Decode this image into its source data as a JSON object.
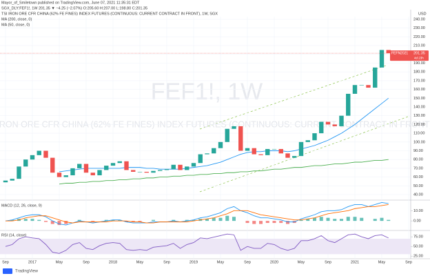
{
  "header": {
    "author": "Mayor_of_Smiletown published on TradingView.com, June 07, 2021 11:35:31 EDT",
    "symbol": "SGX_DLY:FEF1!, 1W  201.35 ▼ −4.25 (−2.07%) O:205.60 H:207.00 L:198.80 C:201.35",
    "description": "TSI IRON ORE CFR CHINA (62% FE FINES) INDEX FUTURES (CONTINUOUS: CURRENT CONTRACT IN FRONT), 1W, SGX"
  },
  "footer": "TradingView",
  "chart_data": [
    {
      "type": "candlestick",
      "title": "FEF1!, 1W",
      "subtitle": "TSI IRON ORE CFR CHINA (62% FE FINES) INDEX FUTURES (CONTINUOUS: CURRENT CONTRACT IN FRONT)",
      "unit": "USD",
      "x": [
        "2016-09",
        "2016-10",
        "2016-11",
        "2016-12",
        "2017-01",
        "2017-02",
        "2017-03",
        "2017-04",
        "2017-05",
        "2017-06",
        "2017-07",
        "2017-08",
        "2017-09",
        "2017-10",
        "2017-11",
        "2017-12",
        "2018-01",
        "2018-02",
        "2018-03",
        "2018-04",
        "2018-05",
        "2018-06",
        "2018-07",
        "2018-08",
        "2018-09",
        "2018-10",
        "2018-11",
        "2018-12",
        "2019-01",
        "2019-02",
        "2019-03",
        "2019-04",
        "2019-05",
        "2019-06",
        "2019-07",
        "2019-08",
        "2019-09",
        "2019-10",
        "2019-11",
        "2019-12",
        "2020-01",
        "2020-02",
        "2020-03",
        "2020-04",
        "2020-05",
        "2020-06",
        "2020-07",
        "2020-08",
        "2020-09",
        "2020-10",
        "2020-11",
        "2020-12",
        "2021-01",
        "2021-02",
        "2021-03",
        "2021-04",
        "2021-05",
        "2021-06"
      ],
      "open": [
        54,
        56,
        58,
        72,
        80,
        85,
        90,
        82,
        65,
        60,
        62,
        70,
        75,
        65,
        62,
        68,
        73,
        76,
        78,
        68,
        66,
        66,
        65,
        67,
        68,
        69,
        74,
        68,
        72,
        76,
        86,
        87,
        93,
        100,
        115,
        118,
        90,
        93,
        86,
        85,
        92,
        92,
        87,
        82,
        84,
        100,
        102,
        110,
        123,
        120,
        118,
        130,
        155,
        165,
        165,
        162,
        185,
        205
      ],
      "close": [
        56,
        58,
        72,
        80,
        85,
        90,
        82,
        65,
        60,
        62,
        70,
        75,
        65,
        62,
        68,
        73,
        76,
        78,
        68,
        66,
        66,
        65,
        67,
        68,
        69,
        74,
        68,
        72,
        76,
        86,
        87,
        93,
        100,
        115,
        118,
        90,
        93,
        86,
        85,
        92,
        92,
        87,
        82,
        84,
        100,
        102,
        110,
        123,
        120,
        118,
        130,
        155,
        165,
        165,
        162,
        185,
        205,
        201.35
      ],
      "up_color": "#26a69a",
      "down_color": "#ef5350",
      "series": [
        {
          "name": "MA (200, close, 0)",
          "color": "#4caf50",
          "values": [
            null,
            null,
            null,
            null,
            null,
            null,
            null,
            null,
            52,
            53,
            53,
            54,
            54,
            55,
            55,
            56,
            56,
            57,
            57,
            58,
            58,
            59,
            59,
            60,
            60,
            61,
            61,
            62,
            62,
            63,
            63,
            64,
            64,
            65,
            65,
            66,
            66,
            67,
            67,
            68,
            69,
            69,
            70,
            71,
            71,
            72,
            73,
            73,
            74,
            75,
            75,
            76,
            77,
            77,
            78,
            79,
            79,
            80
          ]
        },
        {
          "name": "MA (50, close, 0)",
          "color": "#2196f3",
          "values": [
            null,
            null,
            null,
            null,
            null,
            null,
            null,
            null,
            66,
            67,
            68,
            69,
            70,
            70,
            70,
            70,
            70,
            70,
            71,
            71,
            71,
            70,
            70,
            69,
            69,
            69,
            69,
            70,
            71,
            72,
            73,
            75,
            77,
            80,
            83,
            86,
            88,
            89,
            89,
            90,
            90,
            90,
            89,
            90,
            92,
            94,
            96,
            99,
            102,
            106,
            110,
            115,
            120,
            126,
            132,
            138,
            144,
            150
          ]
        }
      ],
      "ylim": [
        40,
        240
      ],
      "yticks": [
        {
          "value": 40,
          "label": "40.00"
        },
        {
          "value": 50,
          "label": "50.00"
        },
        {
          "value": 60,
          "label": "60.00"
        },
        {
          "value": 70,
          "label": "70.00"
        },
        {
          "value": 80,
          "label": "80.00"
        },
        {
          "value": 90,
          "label": "90.00"
        },
        {
          "value": 100,
          "label": "100.00"
        },
        {
          "value": 110,
          "label": "110.00"
        },
        {
          "value": 120,
          "label": "120.00"
        },
        {
          "value": 130,
          "label": "130.00"
        },
        {
          "value": 140,
          "label": "140.00"
        },
        {
          "value": 150,
          "label": "150.00"
        },
        {
          "value": 160,
          "label": "160.00"
        },
        {
          "value": 170,
          "label": "170.00"
        },
        {
          "value": 180,
          "label": "180.00"
        },
        {
          "value": 190,
          "label": "190.00"
        },
        {
          "value": 200,
          "label": "200.00"
        },
        {
          "value": 210,
          "label": "210.00"
        },
        {
          "value": 220,
          "label": "220.00"
        },
        {
          "value": 230,
          "label": "230.00"
        },
        {
          "value": 240,
          "label": "240.00"
        }
      ],
      "xticks": [
        {
          "value": "2016-09",
          "label": "Sep"
        },
        {
          "value": "2017-01",
          "label": "2017"
        },
        {
          "value": "2017-05",
          "label": "May"
        },
        {
          "value": "2017-09",
          "label": "Sep"
        },
        {
          "value": "2018-01",
          "label": "2018"
        },
        {
          "value": "2018-05",
          "label": "May"
        },
        {
          "value": "2018-09",
          "label": "Sep"
        },
        {
          "value": "2019-01",
          "label": "2019"
        },
        {
          "value": "2019-05",
          "label": "May"
        },
        {
          "value": "2019-09",
          "label": "Sep"
        },
        {
          "value": "2020-01",
          "label": "2020"
        },
        {
          "value": "2020-05",
          "label": "May"
        },
        {
          "value": "2020-09",
          "label": "Sep"
        },
        {
          "value": "2021-01",
          "label": "2021"
        },
        {
          "value": "2021-05",
          "label": "May"
        },
        {
          "value": "2021-09",
          "label": "Sep"
        }
      ],
      "grid": true,
      "last_price": {
        "symbol": "FEFN2021",
        "value": 201.35,
        "label": "201.35",
        "countdown": "4d 23h"
      }
    },
    {
      "type": "macd",
      "title": "MACD (12, 26, close, 9)",
      "series": [
        {
          "color": "#2196f3",
          "values": [
            0,
            1,
            3,
            5,
            6,
            6,
            4,
            0,
            -3,
            -4,
            -2,
            0,
            -1,
            -2,
            -1,
            0,
            1,
            1,
            -1,
            -2,
            -2,
            -2,
            -1,
            -1,
            -1,
            0,
            -1,
            0,
            1,
            3,
            4,
            6,
            8,
            12,
            14,
            10,
            8,
            5,
            3,
            3,
            2,
            1,
            -1,
            -1,
            2,
            4,
            6,
            9,
            10,
            10,
            11,
            14,
            16,
            16,
            14,
            16,
            18,
            17
          ]
        },
        {
          "color": "#ff6d00",
          "values": [
            0,
            0,
            1,
            3,
            4,
            5,
            5,
            3,
            1,
            -1,
            -2,
            -1,
            -1,
            -1,
            -1,
            -1,
            0,
            0,
            0,
            -1,
            -1,
            -2,
            -2,
            -1,
            -1,
            -1,
            -1,
            -1,
            0,
            1,
            2,
            3,
            5,
            7,
            10,
            10,
            10,
            8,
            6,
            5,
            4,
            3,
            2,
            1,
            1,
            2,
            3,
            5,
            7,
            8,
            9,
            10,
            12,
            13,
            14,
            14,
            15,
            16
          ]
        }
      ],
      "histogram": {
        "up_color": "#26a69a",
        "down_color": "#ef5350",
        "values": [
          0,
          1,
          2,
          2,
          2,
          1,
          -1,
          -3,
          -4,
          -3,
          0,
          1,
          0,
          -1,
          0,
          1,
          1,
          1,
          -1,
          -1,
          -1,
          0,
          1,
          0,
          0,
          1,
          0,
          1,
          1,
          2,
          2,
          3,
          3,
          5,
          4,
          0,
          -2,
          -3,
          -3,
          -2,
          -2,
          -2,
          -3,
          -2,
          1,
          2,
          3,
          4,
          3,
          2,
          2,
          4,
          4,
          3,
          0,
          2,
          3,
          1
        ]
      },
      "ylim": [
        -8,
        19
      ],
      "yticks": [
        {
          "value": 10,
          "label": "10.00"
        },
        {
          "value": 0,
          "label": "0.00"
        }
      ]
    },
    {
      "type": "rsi",
      "title": "RSI (14, close)",
      "series": [
        {
          "color": "#7e57c2",
          "values": [
            50,
            55,
            70,
            75,
            72,
            70,
            55,
            35,
            32,
            40,
            55,
            60,
            45,
            42,
            52,
            58,
            60,
            58,
            42,
            40,
            42,
            40,
            48,
            50,
            52,
            58,
            45,
            55,
            60,
            72,
            70,
            74,
            78,
            82,
            80,
            40,
            50,
            45,
            45,
            58,
            55,
            45,
            40,
            45,
            65,
            65,
            70,
            78,
            65,
            60,
            70,
            80,
            82,
            75,
            70,
            78,
            80,
            72
          ]
        }
      ],
      "band": [
        30,
        70
      ],
      "band_color": "#ede7f6",
      "ylim": [
        20,
        86
      ],
      "yticks": [
        {
          "value": 75,
          "label": "75.00"
        },
        {
          "value": 50,
          "label": "50.00"
        },
        {
          "value": 25,
          "label": "25.00"
        }
      ]
    }
  ]
}
